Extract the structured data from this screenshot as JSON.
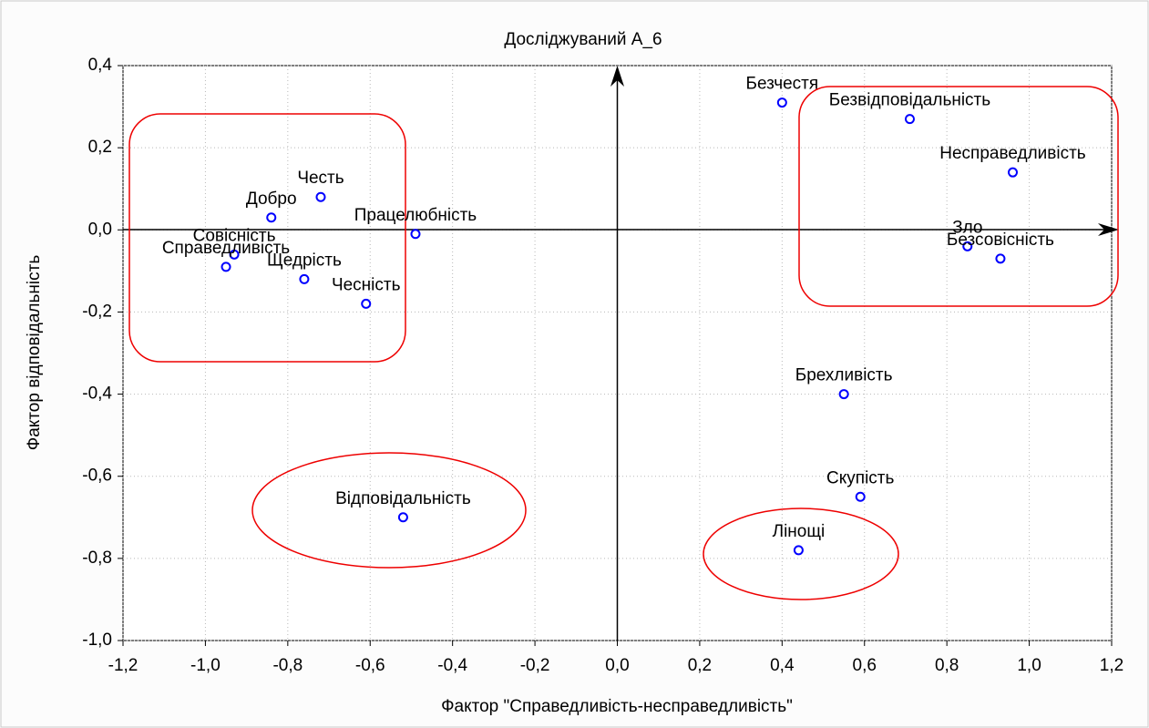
{
  "chart_data": {
    "type": "scatter",
    "title": "Досліджуваний А_6",
    "xlabel": "Фактор \"Справедливість-несправедливість\"",
    "ylabel": "Фактор відповідальність",
    "point_labels": [
      "Безчестя",
      "Безвідповідальність",
      "Несправедливість",
      "Зло",
      "Безсовісність",
      "Брехливість",
      "Скупість",
      "Лінощі",
      "Відповідальність",
      "Честь",
      "Добро",
      "Працелюбність",
      "Совісність",
      "Справедливість",
      "Щедрість",
      "Чесність"
    ],
    "x": [
      0.4,
      0.71,
      0.96,
      0.85,
      0.93,
      0.55,
      0.59,
      0.44,
      -0.52,
      -0.72,
      -0.84,
      -0.49,
      -0.93,
      -0.95,
      -0.76,
      -0.61
    ],
    "values": [
      0.31,
      0.27,
      0.14,
      -0.04,
      -0.07,
      -0.4,
      -0.65,
      -0.78,
      -0.7,
      0.08,
      0.03,
      -0.01,
      -0.06,
      -0.09,
      -0.12,
      -0.18
    ],
    "color": "#0000ff",
    "xlim": [
      -1.2,
      1.2
    ],
    "xticks": [
      {
        "value": -1.2,
        "label": "-1,2"
      },
      {
        "value": -1.0,
        "label": "-1,0"
      },
      {
        "value": -0.8,
        "label": "-0,8"
      },
      {
        "value": -0.6,
        "label": "-0,6"
      },
      {
        "value": -0.4,
        "label": "-0,4"
      },
      {
        "value": -0.2,
        "label": "-0,2"
      },
      {
        "value": 0,
        "label": "0,0"
      },
      {
        "value": 0.2,
        "label": "0,2"
      },
      {
        "value": 0.4,
        "label": "0,4"
      },
      {
        "value": 0.6,
        "label": "0,6"
      },
      {
        "value": 0.8,
        "label": "0,8"
      },
      {
        "value": 1.0,
        "label": "1,0"
      },
      {
        "value": 1.2,
        "label": "1,2"
      }
    ],
    "ylim": [
      -1.0,
      0.4
    ],
    "yticks": [
      {
        "value": 0.4,
        "label": "0,4"
      },
      {
        "value": 0.2,
        "label": "0,2"
      },
      {
        "value": 0,
        "label": "0,0"
      },
      {
        "value": -0.2,
        "label": "-0,2"
      },
      {
        "value": -0.4,
        "label": "-0,4"
      },
      {
        "value": -0.6,
        "label": "-0,6"
      },
      {
        "value": -0.8,
        "label": "-0,8"
      },
      {
        "value": -1.0,
        "label": "-1,0"
      }
    ],
    "grid": true
  }
}
